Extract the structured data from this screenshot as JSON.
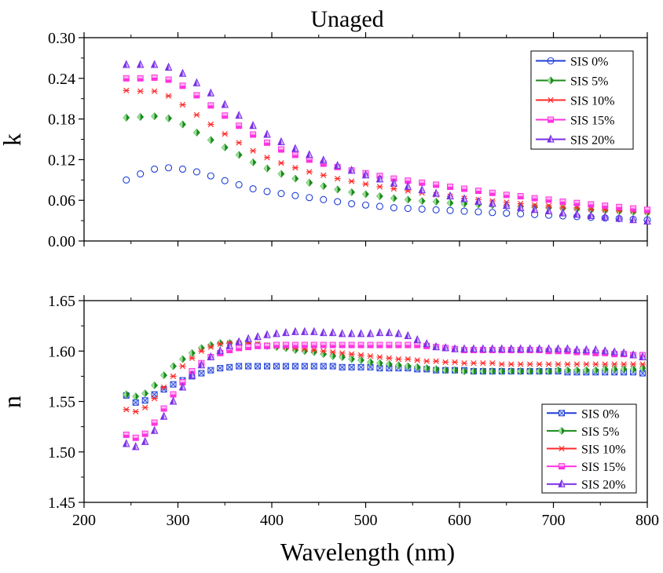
{
  "figure": {
    "title": "Unaged",
    "xlabel": "Wavelength (nm)"
  },
  "chart_data": [
    {
      "type": "scatter",
      "panel": "top",
      "ylabel": "k",
      "xlim": [
        200,
        800
      ],
      "ylim": [
        0.0,
        0.3
      ],
      "xticks": [
        200,
        300,
        400,
        500,
        600,
        700,
        800
      ],
      "yticks": [
        "0.00",
        "0.06",
        "0.12",
        "0.18",
        "0.24",
        "0.30"
      ],
      "grid": false,
      "legend": "top-right",
      "x": [
        245,
        260,
        275,
        290,
        305,
        320,
        335,
        350,
        365,
        380,
        395,
        410,
        425,
        440,
        455,
        470,
        485,
        500,
        515,
        530,
        545,
        560,
        575,
        590,
        605,
        620,
        635,
        650,
        665,
        680,
        695,
        710,
        725,
        740,
        755,
        770,
        785,
        800
      ],
      "series": [
        {
          "name": "SIS 0%",
          "marker": "circle",
          "color": "#1f3fd6",
          "values": [
            0.09,
            0.099,
            0.106,
            0.108,
            0.106,
            0.102,
            0.096,
            0.089,
            0.083,
            0.077,
            0.073,
            0.07,
            0.067,
            0.064,
            0.061,
            0.058,
            0.055,
            0.053,
            0.051,
            0.049,
            0.048,
            0.047,
            0.046,
            0.045,
            0.044,
            0.043,
            0.042,
            0.041,
            0.04,
            0.039,
            0.038,
            0.037,
            0.036,
            0.035,
            0.034,
            0.033,
            0.032,
            0.031
          ]
        },
        {
          "name": "SIS 5%",
          "marker": "diamond",
          "color": "#1a8a1a",
          "values": [
            0.182,
            0.183,
            0.184,
            0.181,
            0.172,
            0.16,
            0.149,
            0.138,
            0.127,
            0.116,
            0.107,
            0.099,
            0.092,
            0.086,
            0.081,
            0.076,
            0.072,
            0.069,
            0.066,
            0.063,
            0.061,
            0.059,
            0.058,
            0.056,
            0.055,
            0.054,
            0.053,
            0.052,
            0.051,
            0.05,
            0.049,
            0.048,
            0.047,
            0.046,
            0.045,
            0.044,
            0.043,
            0.042
          ]
        },
        {
          "name": "SIS 10%",
          "marker": "asterisk",
          "color": "#ff2a2a",
          "values": [
            0.222,
            0.221,
            0.221,
            0.214,
            0.201,
            0.186,
            0.172,
            0.158,
            0.145,
            0.133,
            0.123,
            0.115,
            0.108,
            0.102,
            0.097,
            0.092,
            0.088,
            0.084,
            0.08,
            0.077,
            0.074,
            0.071,
            0.068,
            0.066,
            0.063,
            0.061,
            0.059,
            0.057,
            0.055,
            0.053,
            0.052,
            0.05,
            0.049,
            0.047,
            0.046,
            0.045,
            0.044,
            0.043
          ]
        },
        {
          "name": "SIS 15%",
          "marker": "square-half",
          "color": "#ff33e0",
          "values": [
            0.24,
            0.24,
            0.241,
            0.238,
            0.229,
            0.215,
            0.2,
            0.185,
            0.17,
            0.157,
            0.145,
            0.135,
            0.127,
            0.12,
            0.114,
            0.109,
            0.104,
            0.1,
            0.096,
            0.092,
            0.089,
            0.086,
            0.083,
            0.08,
            0.077,
            0.074,
            0.071,
            0.068,
            0.066,
            0.063,
            0.061,
            0.058,
            0.056,
            0.054,
            0.052,
            0.05,
            0.048,
            0.046
          ]
        },
        {
          "name": "SIS 20%",
          "marker": "triangle",
          "color": "#7a2ee6",
          "values": [
            0.26,
            0.26,
            0.26,
            0.256,
            0.247,
            0.233,
            0.218,
            0.201,
            0.185,
            0.17,
            0.157,
            0.146,
            0.136,
            0.127,
            0.119,
            0.111,
            0.104,
            0.097,
            0.091,
            0.085,
            0.08,
            0.075,
            0.07,
            0.066,
            0.062,
            0.058,
            0.055,
            0.052,
            0.049,
            0.046,
            0.044,
            0.041,
            0.039,
            0.037,
            0.035,
            0.033,
            0.031,
            0.029
          ]
        }
      ]
    },
    {
      "type": "scatter",
      "panel": "bottom",
      "ylabel": "n",
      "xlim": [
        200,
        800
      ],
      "ylim": [
        1.45,
        1.65
      ],
      "xticks": [
        200,
        300,
        400,
        500,
        600,
        700,
        800
      ],
      "yticks": [
        "1.45",
        "1.50",
        "1.55",
        "1.60",
        "1.65"
      ],
      "grid": false,
      "legend": "bottom-right",
      "x": [
        245,
        255,
        265,
        275,
        285,
        295,
        305,
        315,
        325,
        335,
        345,
        355,
        365,
        375,
        385,
        395,
        405,
        415,
        425,
        435,
        445,
        455,
        465,
        475,
        485,
        495,
        505,
        515,
        525,
        535,
        545,
        555,
        565,
        575,
        585,
        595,
        605,
        615,
        625,
        635,
        645,
        655,
        665,
        675,
        685,
        695,
        705,
        715,
        725,
        735,
        745,
        755,
        765,
        775,
        785,
        795
      ],
      "series": [
        {
          "name": "SIS 0%",
          "marker": "square-x",
          "color": "#1f3fd6",
          "values": [
            1.556,
            1.549,
            1.551,
            1.557,
            1.562,
            1.567,
            1.571,
            1.575,
            1.578,
            1.581,
            1.583,
            1.584,
            1.585,
            1.585,
            1.585,
            1.585,
            1.585,
            1.585,
            1.585,
            1.585,
            1.585,
            1.585,
            1.585,
            1.584,
            1.584,
            1.584,
            1.584,
            1.583,
            1.583,
            1.583,
            1.583,
            1.582,
            1.582,
            1.581,
            1.581,
            1.581,
            1.581,
            1.58,
            1.58,
            1.58,
            1.58,
            1.58,
            1.58,
            1.58,
            1.58,
            1.58,
            1.58,
            1.579,
            1.579,
            1.579,
            1.579,
            1.579,
            1.579,
            1.579,
            1.579,
            1.578
          ]
        },
        {
          "name": "SIS 5%",
          "marker": "diamond",
          "color": "#1a8a1a",
          "values": [
            1.557,
            1.555,
            1.558,
            1.566,
            1.576,
            1.585,
            1.592,
            1.598,
            1.603,
            1.606,
            1.608,
            1.608,
            1.608,
            1.607,
            1.606,
            1.605,
            1.604,
            1.603,
            1.601,
            1.6,
            1.599,
            1.597,
            1.595,
            1.594,
            1.592,
            1.591,
            1.589,
            1.588,
            1.587,
            1.586,
            1.585,
            1.584,
            1.583,
            1.582,
            1.581,
            1.581,
            1.58,
            1.58,
            1.58,
            1.58,
            1.58,
            1.58,
            1.58,
            1.58,
            1.58,
            1.58,
            1.581,
            1.581,
            1.581,
            1.581,
            1.581,
            1.582,
            1.582,
            1.582,
            1.582,
            1.583
          ]
        },
        {
          "name": "SIS 10%",
          "marker": "asterisk",
          "color": "#ff2a2a",
          "values": [
            1.542,
            1.54,
            1.544,
            1.553,
            1.564,
            1.575,
            1.585,
            1.593,
            1.6,
            1.604,
            1.607,
            1.608,
            1.608,
            1.608,
            1.607,
            1.606,
            1.605,
            1.604,
            1.603,
            1.602,
            1.601,
            1.6,
            1.599,
            1.598,
            1.597,
            1.596,
            1.595,
            1.594,
            1.593,
            1.592,
            1.592,
            1.591,
            1.59,
            1.59,
            1.589,
            1.589,
            1.588,
            1.588,
            1.588,
            1.588,
            1.587,
            1.587,
            1.587,
            1.587,
            1.587,
            1.587,
            1.587,
            1.587,
            1.587,
            1.587,
            1.587,
            1.587,
            1.587,
            1.587,
            1.587,
            1.587
          ]
        },
        {
          "name": "SIS 15%",
          "marker": "square-half",
          "color": "#ff33e0",
          "values": [
            1.517,
            1.514,
            1.518,
            1.529,
            1.543,
            1.557,
            1.569,
            1.58,
            1.588,
            1.594,
            1.598,
            1.601,
            1.603,
            1.604,
            1.605,
            1.605,
            1.606,
            1.606,
            1.606,
            1.606,
            1.606,
            1.606,
            1.606,
            1.606,
            1.606,
            1.606,
            1.606,
            1.606,
            1.606,
            1.606,
            1.606,
            1.606,
            1.605,
            1.604,
            1.603,
            1.602,
            1.601,
            1.601,
            1.601,
            1.601,
            1.601,
            1.601,
            1.601,
            1.601,
            1.601,
            1.6,
            1.6,
            1.6,
            1.599,
            1.599,
            1.598,
            1.598,
            1.597,
            1.597,
            1.596,
            1.596
          ]
        },
        {
          "name": "SIS 20%",
          "marker": "triangle",
          "color": "#7a2ee6",
          "values": [
            1.508,
            1.505,
            1.51,
            1.521,
            1.535,
            1.55,
            1.564,
            1.576,
            1.586,
            1.594,
            1.6,
            1.605,
            1.609,
            1.612,
            1.614,
            1.616,
            1.617,
            1.618,
            1.619,
            1.619,
            1.619,
            1.618,
            1.618,
            1.617,
            1.617,
            1.617,
            1.617,
            1.618,
            1.618,
            1.617,
            1.615,
            1.611,
            1.607,
            1.604,
            1.603,
            1.602,
            1.602,
            1.602,
            1.602,
            1.602,
            1.602,
            1.602,
            1.602,
            1.602,
            1.602,
            1.602,
            1.602,
            1.602,
            1.601,
            1.601,
            1.601,
            1.6,
            1.599,
            1.598,
            1.596,
            1.594
          ]
        }
      ]
    }
  ]
}
